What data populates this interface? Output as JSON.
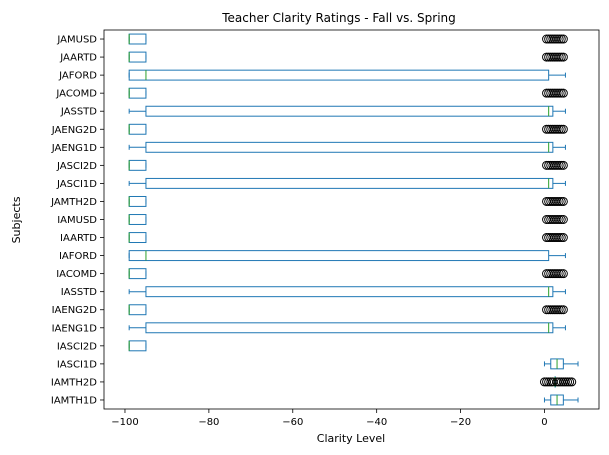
{
  "chart_data": {
    "type": "boxplot",
    "orientation": "horizontal",
    "title": "Teacher Clarity Ratings - Fall vs. Spring",
    "xlabel": "Clarity Level",
    "ylabel": "Subjects",
    "xlim": [
      -105,
      13
    ],
    "xticks": [
      -100,
      -80,
      -60,
      -40,
      -20,
      0
    ],
    "xtick_labels": [
      "−100",
      "−80",
      "−60",
      "−40",
      "−20",
      "0"
    ],
    "grid": false,
    "colors": {
      "box": "#1f77b4",
      "median": "#2ca02c",
      "flier": "#000000"
    },
    "categories": [
      "IAMTH1D",
      "IAMTH2D",
      "IASCI1D",
      "IASCI2D",
      "IAENG1D",
      "IAENG2D",
      "IASSTD",
      "IACOMD",
      "IAFORD",
      "IAARTD",
      "IAMUSD",
      "JAMTH2D",
      "JASCI1D",
      "JASCI2D",
      "JAENG1D",
      "JAENG2D",
      "JASSTD",
      "JACOMD",
      "JAFORD",
      "JAARTD",
      "JAMUSD"
    ],
    "boxes": [
      {
        "name": "IAMTH1D",
        "whislo": 0,
        "q1": 1.5,
        "med": 3,
        "q3": 4.5,
        "whishi": 8,
        "fliers": []
      },
      {
        "name": "IAMTH2D",
        "whislo": 2.5,
        "q1": 2.5,
        "med": 2.5,
        "q3": 2.5,
        "whishi": 2.5,
        "fliers": [
          0,
          0.5,
          1,
          1.5,
          2,
          3,
          3.5,
          4,
          4.5,
          5,
          5.5,
          6,
          6.5
        ]
      },
      {
        "name": "IASCI1D",
        "whislo": 0,
        "q1": 1.5,
        "med": 3,
        "q3": 4.5,
        "whishi": 8,
        "fliers": []
      },
      {
        "name": "IASCI2D",
        "whislo": -99,
        "q1": -99,
        "med": -99,
        "q3": -95,
        "whishi": -95,
        "fliers": []
      },
      {
        "name": "IAENG1D",
        "whislo": -99,
        "q1": -95,
        "med": 1,
        "q3": 2,
        "whishi": 5,
        "fliers": []
      },
      {
        "name": "IAENG2D",
        "whislo": -99,
        "q1": -99,
        "med": -99,
        "q3": -95,
        "whishi": -95,
        "fliers": [
          0.5,
          1,
          1.5,
          2,
          2.5,
          3,
          3.5,
          4,
          4.5
        ]
      },
      {
        "name": "IASSTD",
        "whislo": -99,
        "q1": -95,
        "med": 1,
        "q3": 2,
        "whishi": 5,
        "fliers": []
      },
      {
        "name": "IACOMD",
        "whislo": -99,
        "q1": -99,
        "med": -99,
        "q3": -95,
        "whishi": -95,
        "fliers": [
          0.5,
          1,
          1.5,
          2,
          2.5,
          3,
          3.5,
          4,
          4.5
        ]
      },
      {
        "name": "IAFORD",
        "whislo": -99,
        "q1": -99,
        "med": -95,
        "q3": 1,
        "whishi": 5,
        "fliers": []
      },
      {
        "name": "IAARTD",
        "whislo": -99,
        "q1": -99,
        "med": -99,
        "q3": -95,
        "whishi": -95,
        "fliers": [
          0.5,
          1,
          1.5,
          2,
          2.5,
          3,
          3.5,
          4,
          4.5
        ]
      },
      {
        "name": "IAMUSD",
        "whislo": -99,
        "q1": -99,
        "med": -99,
        "q3": -95,
        "whishi": -95,
        "fliers": [
          0.5,
          1,
          1.5,
          2,
          2.5,
          3,
          3.5,
          4,
          4.5
        ]
      },
      {
        "name": "JAMTH2D",
        "whislo": -99,
        "q1": -99,
        "med": -99,
        "q3": -95,
        "whishi": -95,
        "fliers": [
          0.5,
          1,
          1.5,
          2,
          2.5,
          3,
          3.5,
          4,
          4.5
        ]
      },
      {
        "name": "JASCI1D",
        "whislo": -99,
        "q1": -95,
        "med": 1,
        "q3": 2,
        "whishi": 5,
        "fliers": []
      },
      {
        "name": "JASCI2D",
        "whislo": -99,
        "q1": -99,
        "med": -99,
        "q3": -95,
        "whishi": -95,
        "fliers": [
          0.5,
          1,
          1.5,
          2,
          2.5,
          3,
          3.5,
          4,
          4.5
        ]
      },
      {
        "name": "JAENG1D",
        "whislo": -99,
        "q1": -95,
        "med": 1,
        "q3": 2,
        "whishi": 5,
        "fliers": []
      },
      {
        "name": "JAENG2D",
        "whislo": -99,
        "q1": -99,
        "med": -99,
        "q3": -95,
        "whishi": -95,
        "fliers": [
          0.5,
          1,
          1.5,
          2,
          2.5,
          3,
          3.5,
          4,
          4.5
        ]
      },
      {
        "name": "JASSTD",
        "whislo": -99,
        "q1": -95,
        "med": 1,
        "q3": 2,
        "whishi": 5,
        "fliers": []
      },
      {
        "name": "JACOMD",
        "whislo": -99,
        "q1": -99,
        "med": -99,
        "q3": -95,
        "whishi": -95,
        "fliers": [
          0.5,
          1,
          1.5,
          2,
          2.5,
          3,
          3.5,
          4,
          4.5
        ]
      },
      {
        "name": "JAFORD",
        "whislo": -99,
        "q1": -99,
        "med": -95,
        "q3": 1,
        "whishi": 5,
        "fliers": []
      },
      {
        "name": "JAARTD",
        "whislo": -99,
        "q1": -99,
        "med": -99,
        "q3": -95,
        "whishi": -95,
        "fliers": [
          0.5,
          1,
          1.5,
          2,
          2.5,
          3,
          3.5,
          4,
          4.5
        ]
      },
      {
        "name": "JAMUSD",
        "whislo": -99,
        "q1": -99,
        "med": -99,
        "q3": -95,
        "whishi": -95,
        "fliers": [
          0.5,
          1,
          1.5,
          2,
          2.5,
          3,
          3.5,
          4,
          4.5
        ]
      }
    ]
  }
}
